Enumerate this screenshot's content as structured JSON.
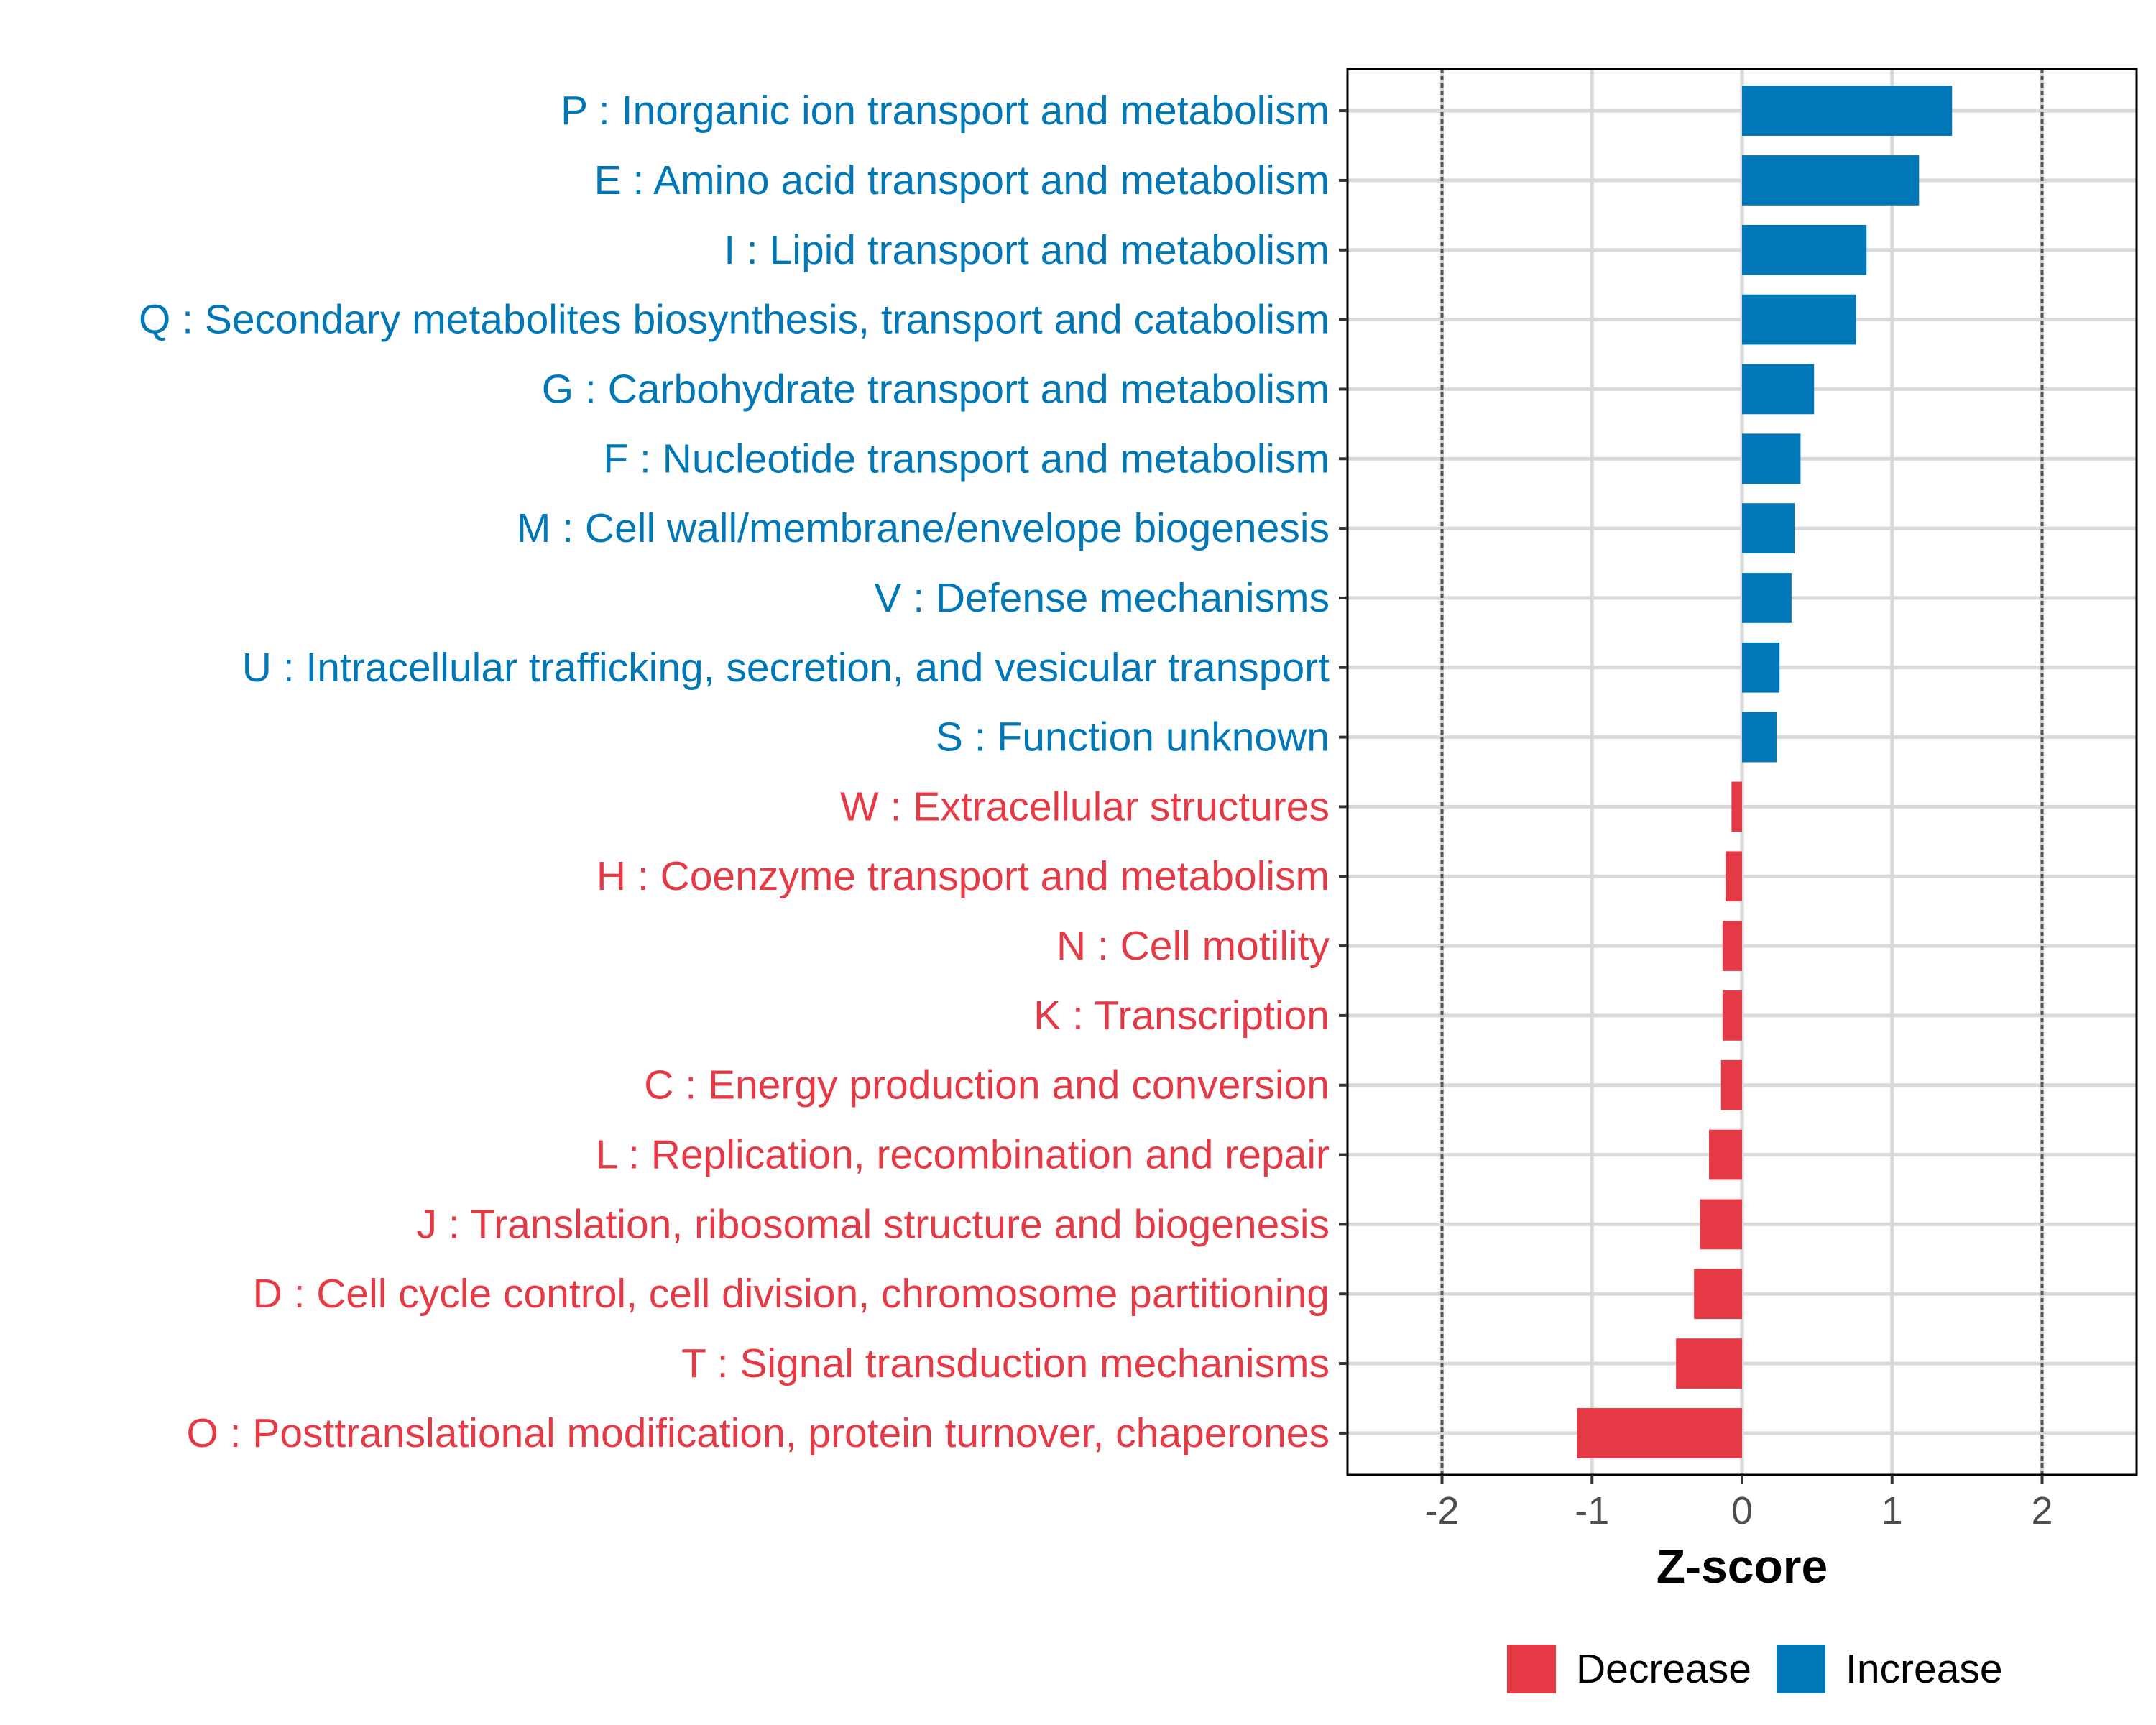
{
  "chart_data": {
    "type": "bar",
    "orientation": "horizontal",
    "title": "",
    "xlabel": "Z-score",
    "ylabel": "",
    "xlim": [
      -2.63,
      2.63
    ],
    "xticks": [
      -2,
      -1,
      0,
      1,
      2
    ],
    "xtick_labels": [
      "-2",
      "-1",
      "0",
      "1",
      "2"
    ],
    "reference_lines": [
      -2,
      2
    ],
    "grid": true,
    "legend_position": "bottom",
    "colors": {
      "Decrease": "#E63946",
      "Increase": "#0077B6"
    },
    "legend": [
      {
        "label": "Decrease",
        "color": "#E63946"
      },
      {
        "label": "Increase",
        "color": "#0077B6"
      }
    ],
    "categories": [
      "P : Inorganic ion transport and metabolism",
      "E : Amino acid transport and metabolism",
      "I : Lipid transport and metabolism",
      "Q : Secondary metabolites biosynthesis, transport and catabolism",
      "G : Carbohydrate transport and metabolism",
      "F : Nucleotide transport and metabolism",
      "M : Cell wall/membrane/envelope biogenesis",
      "V : Defense mechanisms",
      "U : Intracellular trafficking, secretion, and vesicular transport",
      "S : Function unknown",
      "W : Extracellular structures",
      "H : Coenzyme transport and metabolism",
      "N : Cell motility",
      "K : Transcription",
      "C : Energy production and conversion",
      "L : Replication, recombination and repair",
      "J : Translation, ribosomal structure and biogenesis",
      "D : Cell cycle control, cell division, chromosome partitioning",
      "T : Signal transduction mechanisms",
      "O : Posttranslational modification, protein turnover, chaperones"
    ],
    "values": [
      1.4,
      1.18,
      0.83,
      0.76,
      0.48,
      0.39,
      0.35,
      0.33,
      0.25,
      0.23,
      -0.07,
      -0.11,
      -0.13,
      -0.13,
      -0.14,
      -0.22,
      -0.28,
      -0.32,
      -0.44,
      -1.1
    ],
    "groups": [
      "Increase",
      "Increase",
      "Increase",
      "Increase",
      "Increase",
      "Increase",
      "Increase",
      "Increase",
      "Increase",
      "Increase",
      "Decrease",
      "Decrease",
      "Decrease",
      "Decrease",
      "Decrease",
      "Decrease",
      "Decrease",
      "Decrease",
      "Decrease",
      "Decrease"
    ]
  }
}
